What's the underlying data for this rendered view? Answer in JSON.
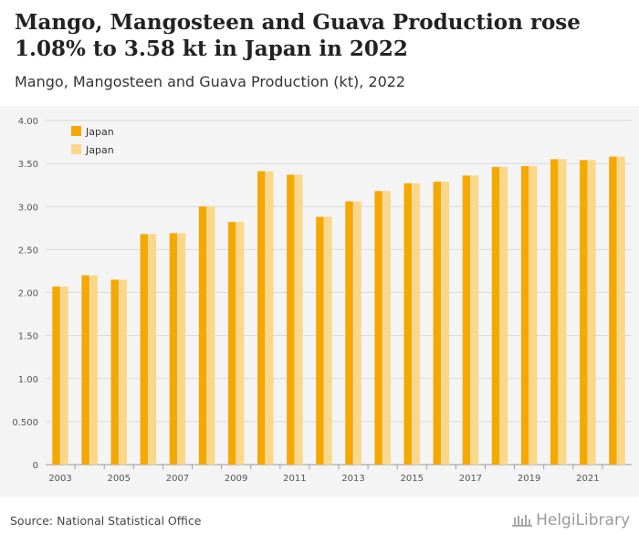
{
  "header": {
    "title": "Mango, Mangosteen and Guava Production rose 1.08% to 3.58 kt in Japan in 2022",
    "subtitle": "Mango, Mangosteen and Guava Production (kt), 2022"
  },
  "footer": {
    "source": "Source: National Statistical Office",
    "logo_text": "HelgiLibrary"
  },
  "chart_data": {
    "type": "bar",
    "categories": [
      "2003",
      "2004",
      "2005",
      "2006",
      "2007",
      "2008",
      "2009",
      "2010",
      "2011",
      "2012",
      "2013",
      "2014",
      "2015",
      "2016",
      "2017",
      "2018",
      "2019",
      "2020",
      "2021",
      "2022"
    ],
    "x_tick_labels": [
      "2003",
      "2005",
      "2007",
      "2009",
      "2011",
      "2013",
      "2015",
      "2017",
      "2019",
      "2021"
    ],
    "y_ticks": [
      "0",
      "0.500",
      "1.00",
      "1.50",
      "2.00",
      "2.50",
      "3.00",
      "3.50",
      "4.00"
    ],
    "ylim": [
      0,
      4
    ],
    "grid": true,
    "legend_position": "top-left",
    "series": [
      {
        "name": "Japan",
        "color": "#f5a800",
        "values": [
          2.07,
          2.2,
          2.15,
          2.68,
          2.69,
          3.0,
          2.82,
          3.41,
          3.37,
          2.88,
          3.06,
          3.18,
          3.27,
          3.29,
          3.36,
          3.46,
          3.47,
          3.55,
          3.54,
          3.58
        ]
      },
      {
        "name": "Japan",
        "color": "#fbd78a",
        "values": [
          2.07,
          2.2,
          2.15,
          2.68,
          2.69,
          3.0,
          2.82,
          3.41,
          3.37,
          2.88,
          3.06,
          3.18,
          3.27,
          3.29,
          3.36,
          3.46,
          3.47,
          3.55,
          3.54,
          3.58
        ]
      }
    ]
  }
}
